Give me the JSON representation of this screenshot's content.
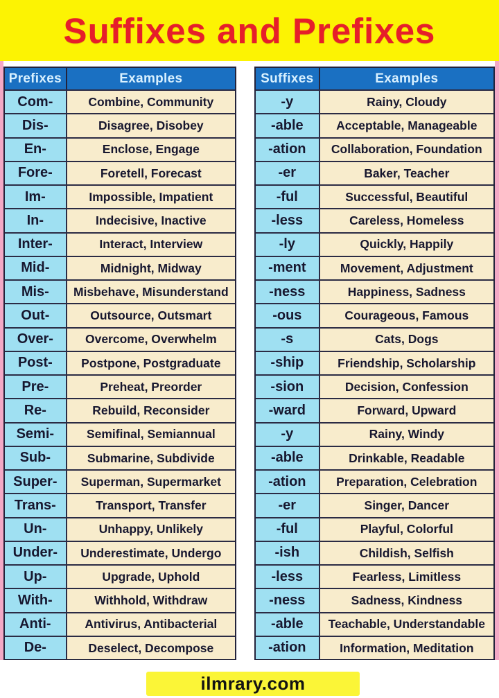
{
  "title": "Suffixes and Prefixes",
  "footer": {
    "site": "ilmrary.com"
  },
  "colors": {
    "banner_bg": "#FCF303",
    "title_red": "#E61E2A",
    "header_blue": "#1A70C2",
    "affix_cell_cyan": "#9FE0F2",
    "example_cell_cream": "#F8ECCC",
    "side_border_pink": "#F3A9C6",
    "grid_line": "#2B2B44"
  },
  "prefix_table": {
    "headers": [
      "Prefixes",
      "Examples"
    ],
    "rows": [
      [
        "Com-",
        "Combine, Community"
      ],
      [
        "Dis-",
        "Disagree, Disobey"
      ],
      [
        "En-",
        "Enclose, Engage"
      ],
      [
        "Fore-",
        "Foretell, Forecast"
      ],
      [
        "Im-",
        "Impossible, Impatient"
      ],
      [
        "In-",
        "Indecisive, Inactive"
      ],
      [
        "Inter-",
        "Interact, Interview"
      ],
      [
        "Mid-",
        "Midnight, Midway"
      ],
      [
        "Mis-",
        "Misbehave, Misunderstand"
      ],
      [
        "Out-",
        "Outsource, Outsmart"
      ],
      [
        "Over-",
        "Overcome, Overwhelm"
      ],
      [
        "Post-",
        "Postpone, Postgraduate"
      ],
      [
        "Pre-",
        "Preheat, Preorder"
      ],
      [
        "Re-",
        "Rebuild, Reconsider"
      ],
      [
        "Semi-",
        "Semifinal, Semiannual"
      ],
      [
        "Sub-",
        "Submarine, Subdivide"
      ],
      [
        "Super-",
        "Superman, Supermarket"
      ],
      [
        "Trans-",
        "Transport, Transfer"
      ],
      [
        "Un-",
        "Unhappy, Unlikely"
      ],
      [
        "Under-",
        "Underestimate, Undergo"
      ],
      [
        "Up-",
        "Upgrade, Uphold"
      ],
      [
        "With-",
        "Withhold, Withdraw"
      ],
      [
        "Anti-",
        "Antivirus, Antibacterial"
      ],
      [
        "De-",
        "Deselect, Decompose"
      ]
    ]
  },
  "suffix_table": {
    "headers": [
      "Suffixes",
      "Examples"
    ],
    "rows": [
      [
        "-y",
        "Rainy, Cloudy"
      ],
      [
        "-able",
        "Acceptable, Manageable"
      ],
      [
        "-ation",
        "Collaboration, Foundation"
      ],
      [
        "-er",
        "Baker, Teacher"
      ],
      [
        "-ful",
        "Successful, Beautiful"
      ],
      [
        "-less",
        "Careless, Homeless"
      ],
      [
        "-ly",
        "Quickly, Happily"
      ],
      [
        "-ment",
        "Movement, Adjustment"
      ],
      [
        "-ness",
        "Happiness, Sadness"
      ],
      [
        "-ous",
        "Courageous, Famous"
      ],
      [
        "-s",
        "Cats, Dogs"
      ],
      [
        "-ship",
        "Friendship, Scholarship"
      ],
      [
        "-sion",
        "Decision, Confession"
      ],
      [
        "-ward",
        "Forward, Upward"
      ],
      [
        "-y",
        "Rainy, Windy"
      ],
      [
        "-able",
        "Drinkable, Readable"
      ],
      [
        "-ation",
        "Preparation, Celebration"
      ],
      [
        "-er",
        "Singer, Dancer"
      ],
      [
        "-ful",
        "Playful, Colorful"
      ],
      [
        "-ish",
        "Childish, Selfish"
      ],
      [
        "-less",
        "Fearless, Limitless"
      ],
      [
        "-ness",
        "Sadness, Kindness"
      ],
      [
        "-able",
        "Teachable, Understandable"
      ],
      [
        "-ation",
        "Information, Meditation"
      ]
    ]
  }
}
